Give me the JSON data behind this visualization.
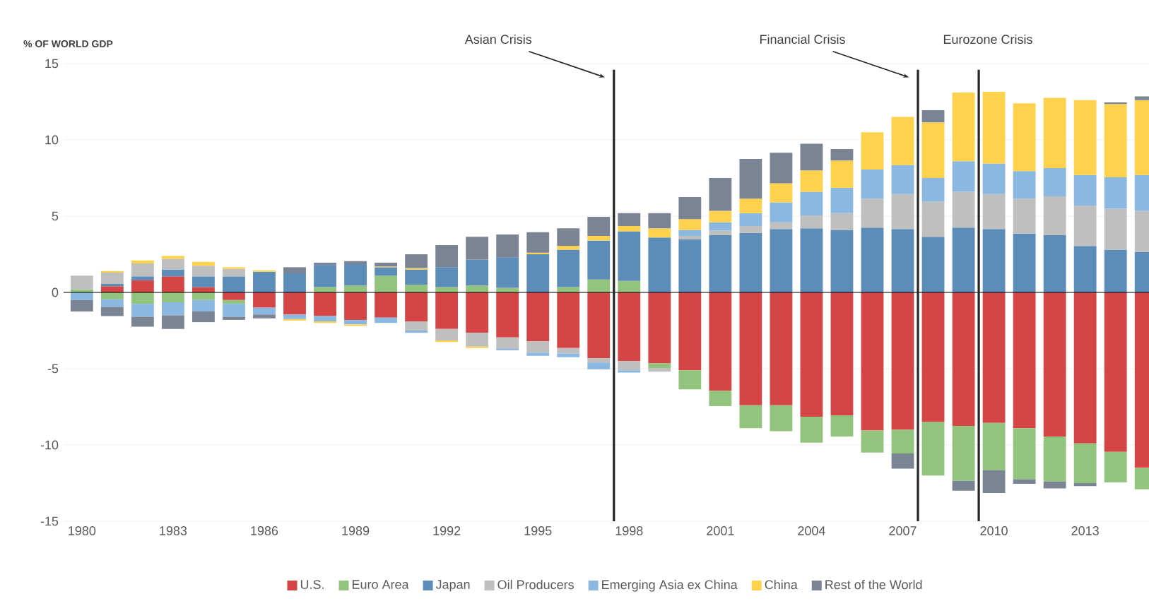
{
  "chart_data": {
    "type": "bar",
    "stacked": true,
    "ylabel": "% OF WORLD GDP",
    "x": [
      1980,
      1981,
      1982,
      1983,
      1984,
      1985,
      1986,
      1987,
      1988,
      1989,
      1990,
      1991,
      1992,
      1993,
      1994,
      1995,
      1996,
      1997,
      1998,
      1999,
      2000,
      2001,
      2002,
      2003,
      2004,
      2005,
      2006,
      2007,
      2008,
      2009,
      2010,
      2011,
      2012,
      2013,
      2014,
      2015
    ],
    "xlim": [
      1979.4,
      2015.1
    ],
    "xticks": [
      1980,
      1983,
      1986,
      1989,
      1992,
      1995,
      1998,
      2001,
      2004,
      2007,
      2010,
      2013
    ],
    "ylim": [
      -15,
      15
    ],
    "yticks": [
      15,
      10,
      5,
      0,
      -5,
      -10,
      -15
    ],
    "grid": "y",
    "legend": "bottom",
    "series": [
      {
        "name": "U.S.",
        "color": "#d64545",
        "values": [
          0,
          0.4,
          0.8,
          1.05,
          0.35,
          -0.5,
          -1.0,
          -1.45,
          -1.55,
          -1.8,
          -1.65,
          -1.9,
          -2.4,
          -2.65,
          -2.95,
          -3.2,
          -3.65,
          -4.3,
          -4.5,
          -4.65,
          -5.1,
          -6.45,
          -7.4,
          -7.4,
          -8.15,
          -8.05,
          -9.05,
          -9.0,
          -8.5,
          -8.75,
          -8.55,
          -8.9,
          -9.45,
          -9.9,
          -10.45,
          -11.5
        ]
      },
      {
        "name": "Euro Area",
        "color": "#93c47d",
        "values": [
          0.2,
          -0.45,
          -0.75,
          -0.65,
          -0.5,
          -0.25,
          0,
          null,
          0.35,
          0.45,
          1.1,
          0.5,
          0.35,
          0.45,
          0.3,
          0,
          0.35,
          0.85,
          0.75,
          -0.3,
          -1.25,
          -1.0,
          -1.5,
          -1.7,
          -1.7,
          -1.4,
          -1.45,
          -1.55,
          -3.5,
          -3.6,
          -3.1,
          -3.35,
          -2.95,
          -2.6,
          -2.0,
          -1.4
        ]
      },
      {
        "name": "Japan",
        "color": "#5b8db8",
        "values": [
          0,
          0.15,
          0.25,
          0.45,
          0.7,
          1.05,
          1.35,
          1.25,
          1.45,
          1.4,
          0.55,
          1.0,
          1.3,
          1.7,
          2.0,
          2.5,
          2.45,
          2.55,
          3.25,
          3.6,
          3.5,
          3.75,
          3.9,
          4.15,
          4.2,
          4.1,
          4.25,
          4.15,
          3.65,
          4.25,
          4.15,
          3.85,
          3.75,
          3.05,
          2.8,
          2.65
        ]
      },
      {
        "name": "Oil Producers",
        "color": "#bfbfbf",
        "values": [
          0.9,
          0.75,
          0.85,
          0.7,
          0.7,
          0.5,
          null,
          null,
          0,
          0,
          0,
          -0.6,
          -0.75,
          -0.9,
          -0.75,
          -0.75,
          -0.35,
          -0.3,
          -0.6,
          -0.25,
          0.2,
          0.3,
          0.45,
          0.45,
          0.85,
          1.1,
          1.9,
          2.3,
          2.3,
          2.35,
          2.3,
          2.3,
          2.55,
          2.65,
          2.7,
          2.7
        ]
      },
      {
        "name": "Emerging Asia ex China",
        "color": "#8ab8e0",
        "values": [
          -0.5,
          -0.5,
          -0.85,
          -0.85,
          -0.75,
          -0.85,
          -0.45,
          -0.3,
          -0.35,
          -0.3,
          -0.35,
          -0.15,
          0,
          0,
          -0.1,
          -0.2,
          -0.25,
          -0.45,
          -0.15,
          0,
          0.4,
          0.55,
          0.85,
          1.3,
          1.55,
          1.65,
          1.9,
          1.9,
          1.55,
          2.0,
          2.0,
          1.8,
          1.85,
          2.0,
          2.05,
          2.35
        ]
      },
      {
        "name": "China",
        "color": "#ffd24d",
        "values": [
          0,
          0.1,
          0.2,
          0.2,
          0.25,
          0.1,
          0.1,
          -0.1,
          -0.1,
          -0.1,
          0.05,
          0.1,
          -0.1,
          -0.1,
          0,
          0.1,
          0.25,
          0.3,
          0.35,
          0.6,
          0.7,
          0.75,
          0.95,
          1.25,
          1.4,
          1.8,
          2.45,
          3.15,
          3.65,
          4.5,
          4.7,
          4.45,
          4.6,
          4.9,
          4.8,
          4.9
        ]
      },
      {
        "name": "Rest of the World",
        "color": "#7a8494",
        "values": [
          -0.75,
          -0.6,
          -0.65,
          -0.9,
          -0.7,
          -0.2,
          -0.25,
          0.4,
          0.15,
          0.2,
          0.25,
          0.9,
          1.45,
          1.5,
          1.5,
          1.35,
          1.15,
          1.25,
          0.85,
          1.0,
          1.45,
          2.15,
          2.6,
          2.0,
          1.75,
          0.75,
          0,
          -1.0,
          0.8,
          -0.65,
          -1.5,
          -0.3,
          -0.45,
          -0.2,
          0.1,
          0.25
        ]
      }
    ],
    "ref_lines": [
      {
        "axis": "x",
        "value": 1997.5,
        "label": "Asian Crisis",
        "color": "#262626"
      },
      {
        "axis": "x",
        "value": 2007.5,
        "label": "Financial Crisis",
        "color": "#262626"
      },
      {
        "axis": "x",
        "value": 2009.5,
        "label": "Eurozone Crisis",
        "color": "#262626"
      }
    ]
  }
}
